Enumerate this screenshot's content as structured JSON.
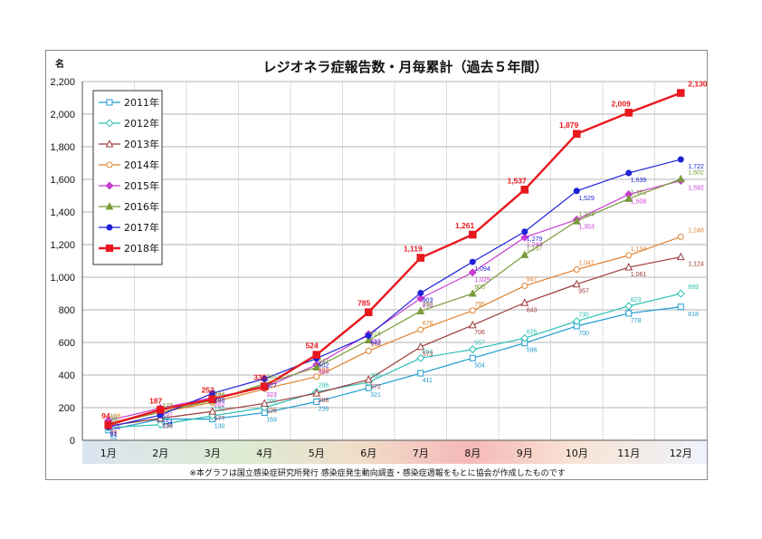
{
  "chart_data": {
    "type": "line",
    "title": "レジオネラ症報告数・月毎累計（過去５年間）",
    "ylabel": "名",
    "ylim": [
      0,
      2200
    ],
    "yticks": [
      "0",
      "200",
      "400",
      "600",
      "800",
      "1,000",
      "1,200",
      "1,400",
      "1,600",
      "1,800",
      "2,000",
      "2,200"
    ],
    "categories": [
      "1月",
      "2月",
      "3月",
      "4月",
      "5月",
      "6月",
      "7月",
      "8月",
      "9月",
      "10月",
      "11月",
      "12月"
    ],
    "grid": true,
    "legend_position": "top-left",
    "note": "※本グラフは国立感染症研究所発行 感染症発生動向調査・感染症週報をもとに協会が作成したものです",
    "series": [
      {
        "name": "2011年",
        "color": "#1f9bd0",
        "marker": "square-open",
        "values": [
          62,
          130,
          130,
          169,
          236,
          321,
          411,
          504,
          596,
          700,
          778,
          818
        ],
        "labels": [
          "62",
          "130",
          "130",
          "169",
          "236",
          "321",
          "411",
          "504",
          "596",
          "700",
          "778",
          "818"
        ]
      },
      {
        "name": "2012年",
        "color": "#2bc0b4",
        "marker": "diamond-open",
        "values": [
          77,
          96,
          150,
          200,
          296,
          356,
          504,
          557,
          626,
          730,
          823,
          899
        ],
        "labels": [
          "77",
          "96",
          "150",
          "200",
          "296",
          "356",
          "504",
          "557",
          "626",
          "730",
          "823",
          "899"
        ]
      },
      {
        "name": "2013年",
        "color": "#9e3a3a",
        "marker": "triangle-open",
        "values": [
          89,
          134,
          177,
          226,
          288,
          372,
          573,
          706,
          843,
          957,
          1061,
          1124
        ],
        "labels": [
          "89",
          "134",
          "177",
          "226",
          "288",
          "372",
          "573",
          "706",
          "843",
          "957",
          "1,061",
          "1,124"
        ]
      },
      {
        "name": "2014年",
        "color": "#e0812e",
        "marker": "circle-open",
        "values": [
          108,
          171,
          232,
          315,
          390,
          548,
          678,
          795,
          947,
          1047,
          1134,
          1248
        ],
        "labels": [
          "108",
          "171",
          "232",
          "315",
          "390",
          "548",
          "678",
          "795",
          "947",
          "1,047",
          "1,134",
          "1,248"
        ]
      },
      {
        "name": "2015年",
        "color": "#c83cd0",
        "marker": "diamond",
        "values": [
          121,
          197,
          262,
          323,
          463,
          651,
          870,
          1029,
          1244,
          1353,
          1508,
          1592
        ],
        "labels": [
          "121",
          "197",
          "262",
          "323",
          "463",
          "651",
          "870",
          "1,029",
          "1,244",
          "1,353",
          "1,508",
          "1,592"
        ]
      },
      {
        "name": "2016年",
        "color": "#7a9a3a",
        "marker": "triangle",
        "values": [
          98,
          172,
          244,
          346,
          447,
          614,
          792,
          900,
          1137,
          1344,
          1481,
          1602
        ],
        "labels": [
          "98",
          "172",
          "244",
          "346",
          "447",
          "614",
          "792",
          "900",
          "1,137",
          "1,344",
          "1,481",
          "1,602"
        ]
      },
      {
        "name": "2017年",
        "color": "#1d22d8",
        "marker": "circle",
        "values": [
          81,
          154,
          288,
          377,
          502,
          642,
          903,
          1094,
          1279,
          1529,
          1639,
          1722
        ],
        "labels": [
          "81",
          "154",
          "288",
          "377",
          "502",
          "642",
          "903",
          "1,094",
          "1,279",
          "1,529",
          "1,639",
          "1,722"
        ]
      },
      {
        "name": "2018年",
        "color": "#e8181e",
        "marker": "square",
        "values": [
          94,
          187,
          252,
          330,
          524,
          785,
          1119,
          1261,
          1537,
          1879,
          2009,
          2130
        ],
        "labels": [
          "94",
          "187",
          "252",
          "330",
          "524",
          "785",
          "1,119",
          "1,261",
          "1,537",
          "1,879",
          "2,009",
          "2,130"
        ]
      }
    ]
  }
}
